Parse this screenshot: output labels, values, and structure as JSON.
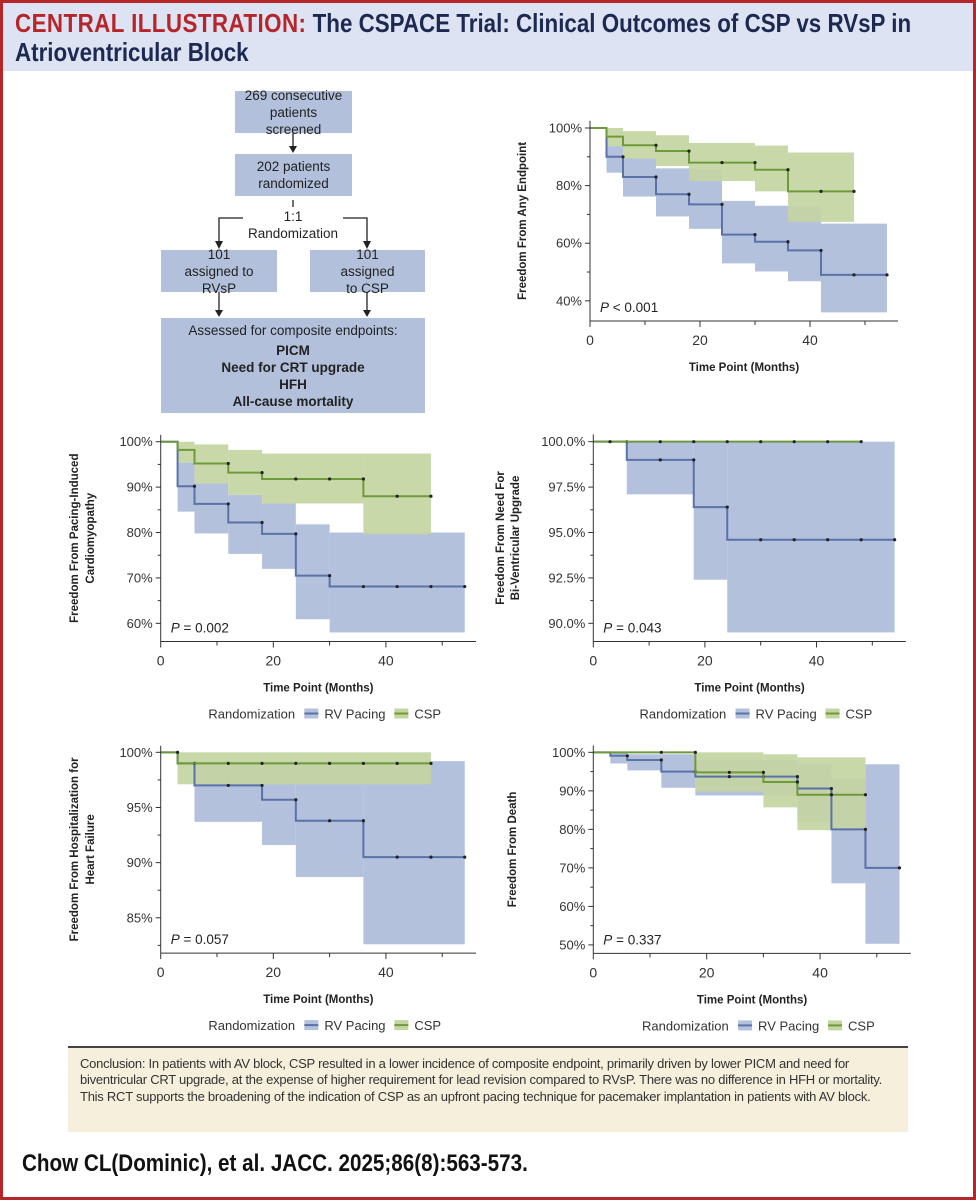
{
  "header": {
    "label": "CENTRAL ILLUSTRATION:",
    "title": "The CSPACE Trial: Clinical Outcomes of CSP vs RVsP in Atrioventricular Block"
  },
  "flowchart": {
    "screened": "269 consecutive patients screened",
    "randomized": "202 patients randomized",
    "ratio": "1:1",
    "randomization": "Randomization",
    "arm_rvsp": "101 assigned to RVsP",
    "arm_csp": "101 assigned to CSP",
    "assessed": "Assessed for composite endpoints:",
    "endpoints": [
      "PICM",
      "Need for CRT upgrade",
      "HFH",
      "All-cause mortality"
    ]
  },
  "colors": {
    "rv_line": "#5a72a8",
    "rv_band": "#b3c1dd",
    "csp_line": "#6f9a3c",
    "csp_band": "#c4d5a2",
    "frame": "#b5262b",
    "header_bg": "#dde3f2",
    "conclusion_bg": "#f5efdc"
  },
  "legend": {
    "title": "Randomization",
    "rv": "RV Pacing",
    "csp": "CSP"
  },
  "chart_data": [
    {
      "type": "line",
      "subtype": "kaplan-meier step with confidence bands",
      "ylabel": [
        "Freedom From Any Endpoint"
      ],
      "xlabel": "Time Point (Months)",
      "xlim": [
        0,
        56
      ],
      "ylim": [
        33,
        102.5
      ],
      "xticks": [
        0,
        20,
        40
      ],
      "xtick_labels": [
        "0",
        "20",
        "40"
      ],
      "yticks": [
        100,
        80,
        60,
        40
      ],
      "ytick_labels": [
        "100%",
        "80%",
        "60%",
        "40%"
      ],
      "yminor_step": 10,
      "p_label": "P",
      "p_value": "< 0.001",
      "legend": false,
      "series": [
        {
          "name": "RV Pacing",
          "key": "rv",
          "steps": [
            [
              0,
              3,
              100,
              100,
              100
            ],
            [
              3,
              6,
              90,
              84.5,
              93.7
            ],
            [
              6,
              12,
              83,
              76.2,
              89.4
            ],
            [
              12,
              18,
              77,
              69.3,
              86
            ],
            [
              18,
              24,
              73.5,
              65,
              85.7
            ],
            [
              24,
              30,
              63,
              53,
              74.7
            ],
            [
              30,
              36,
              60.5,
              50.2,
              73
            ],
            [
              36,
              42,
              57.5,
              46.8,
              73
            ],
            [
              42,
              54,
              49,
              36,
              66.8
            ]
          ],
          "marks": [
            6,
            12,
            18,
            24,
            30,
            36,
            42,
            48,
            54
          ]
        },
        {
          "name": "CSP",
          "key": "csp",
          "steps": [
            [
              0,
              3,
              100,
              100,
              100
            ],
            [
              3,
              6,
              97,
              93.7,
              100
            ],
            [
              6,
              12,
              94,
              89.4,
              98.9
            ],
            [
              12,
              18,
              92,
              86.8,
              97.5
            ],
            [
              18,
              30,
              88,
              81.6,
              94.8
            ],
            [
              30,
              36,
              85.5,
              78,
              93.9
            ],
            [
              36,
              48,
              78,
              67.4,
              91.5
            ]
          ],
          "marks": [
            12,
            18,
            24,
            30,
            36,
            42,
            48
          ]
        }
      ]
    },
    {
      "type": "line",
      "subtype": "kaplan-meier step with confidence bands",
      "ylabel": [
        "Freedom From Pacing-Induced",
        "Cardiomyopathy"
      ],
      "xlabel": "Time Point (Months)",
      "xlim": [
        0,
        56
      ],
      "ylim": [
        56,
        101.5
      ],
      "xticks": [
        0,
        20,
        40
      ],
      "xtick_labels": [
        "0",
        "20",
        "40"
      ],
      "yticks": [
        100,
        90,
        80,
        70,
        60
      ],
      "ytick_labels": [
        "100%",
        "90%",
        "80%",
        "70%",
        "60%"
      ],
      "yminor_step": 5,
      "p_label": "P",
      "p_value": "= 0.002",
      "legend": true,
      "series": [
        {
          "name": "RV Pacing",
          "key": "rv",
          "steps": [
            [
              0,
              3,
              100,
              100,
              100
            ],
            [
              3,
              6,
              90.2,
              84.6,
              95.4
            ],
            [
              6,
              12,
              86.3,
              79.8,
              90.8
            ],
            [
              12,
              18,
              82.2,
              75.3,
              88.3
            ],
            [
              18,
              24,
              79.7,
              72,
              86.4
            ],
            [
              24,
              30,
              70.5,
              60.9,
              81.8
            ],
            [
              30,
              54,
              68.1,
              58,
              80
            ]
          ],
          "marks": [
            6,
            12,
            18,
            24,
            30,
            36,
            42,
            48,
            54
          ]
        },
        {
          "name": "CSP",
          "key": "csp",
          "steps": [
            [
              0,
              3,
              100,
              100,
              100
            ],
            [
              3,
              6,
              98.2,
              95.4,
              100
            ],
            [
              6,
              12,
              95.2,
              90.8,
              99.4
            ],
            [
              12,
              18,
              93.2,
              88.3,
              98.2
            ],
            [
              18,
              36,
              91.8,
              86.4,
              97.4
            ],
            [
              36,
              48,
              88,
              79.6,
              97.4
            ]
          ],
          "marks": [
            12,
            18,
            24,
            30,
            36,
            42,
            48
          ]
        }
      ]
    },
    {
      "type": "line",
      "subtype": "kaplan-meier step with confidence bands",
      "ylabel": [
        "Freedom From Need For",
        "Bi-Ventricular Upgrade"
      ],
      "xlabel": "Time Point (Months)",
      "xlim": [
        0,
        56
      ],
      "ylim": [
        89,
        100.4
      ],
      "xticks": [
        0,
        20,
        40
      ],
      "xtick_labels": [
        "0",
        "20",
        "40"
      ],
      "yticks": [
        100,
        97.5,
        95,
        92.5,
        90
      ],
      "ytick_labels": [
        "100.0%",
        "97.5%",
        "95.0%",
        "92.5%",
        "90.0%"
      ],
      "yminor_step": 1.25,
      "p_label": "P",
      "p_value": "= 0.043",
      "legend": true,
      "series": [
        {
          "name": "RV Pacing",
          "key": "rv",
          "steps": [
            [
              0,
              6,
              100,
              100,
              100
            ],
            [
              6,
              18,
              99,
              97.1,
              100
            ],
            [
              18,
              24,
              96.4,
              92.4,
              100
            ],
            [
              24,
              54,
              94.6,
              89.5,
              100
            ]
          ],
          "marks": [
            6,
            12,
            18,
            24,
            30,
            36,
            42,
            48,
            54
          ]
        },
        {
          "name": "CSP",
          "key": "csp",
          "steps": [
            [
              0,
              48,
              100,
              100,
              100
            ]
          ],
          "marks": [
            3,
            12,
            18,
            24,
            30,
            36,
            42,
            48
          ]
        }
      ]
    },
    {
      "type": "line",
      "subtype": "kaplan-meier step with confidence bands",
      "ylabel": [
        "Freedom From Hospitalization for",
        "Heart Failure"
      ],
      "xlabel": "Time Point (Months)",
      "xlim": [
        0,
        56
      ],
      "ylim": [
        81.8,
        100.6
      ],
      "xticks": [
        0,
        20,
        40
      ],
      "xtick_labels": [
        "0",
        "20",
        "40"
      ],
      "yticks": [
        100,
        95,
        90,
        85
      ],
      "ytick_labels": [
        "100%",
        "95%",
        "90%",
        "85%"
      ],
      "yminor_step": 2.5,
      "p_label": "P",
      "p_value": "= 0.057",
      "legend": true,
      "series": [
        {
          "name": "RV Pacing",
          "key": "rv",
          "steps": [
            [
              0,
              3,
              100,
              100,
              100
            ],
            [
              3,
              6,
              99,
              99,
              99
            ],
            [
              6,
              18,
              97,
              93.7,
              99.2
            ],
            [
              18,
              24,
              95.7,
              91.6,
              99.2
            ],
            [
              24,
              36,
              93.8,
              88.7,
              99.2
            ],
            [
              36,
              54,
              90.5,
              82.6,
              99.2
            ]
          ],
          "marks": [
            6,
            12,
            18,
            24,
            30,
            36,
            42,
            48,
            54
          ]
        },
        {
          "name": "CSP",
          "key": "csp",
          "steps": [
            [
              0,
              3,
              100,
              100,
              100
            ],
            [
              3,
              48,
              99,
              97.1,
              100
            ]
          ],
          "marks": [
            3,
            12,
            18,
            24,
            30,
            36,
            42,
            48
          ]
        }
      ]
    },
    {
      "type": "line",
      "subtype": "kaplan-meier step with confidence bands",
      "ylabel": [
        "Freedom From Death"
      ],
      "xlabel": "Time Point (Months)",
      "xlim": [
        0,
        56
      ],
      "ylim": [
        47.8,
        101.8
      ],
      "xticks": [
        0,
        20,
        40
      ],
      "xtick_labels": [
        "0",
        "20",
        "40"
      ],
      "yticks": [
        100,
        90,
        80,
        70,
        60,
        50
      ],
      "ytick_labels": [
        "100%",
        "90%",
        "80%",
        "70%",
        "60%",
        "50%"
      ],
      "yminor_step": 5,
      "p_label": "P",
      "p_value": "= 0.337",
      "legend": true,
      "series": [
        {
          "name": "RV Pacing",
          "key": "rv",
          "steps": [
            [
              0,
              3,
              100,
              100,
              100
            ],
            [
              3,
              6,
              99.1,
              97.1,
              100
            ],
            [
              6,
              12,
              98,
              95.3,
              99.5
            ],
            [
              12,
              18,
              95,
              90.8,
              99.5
            ],
            [
              18,
              36,
              93.7,
              88.8,
              98
            ],
            [
              36,
              42,
              90.6,
              82,
              97
            ],
            [
              42,
              48,
              80,
              66,
              93
            ],
            [
              48,
              54,
              70,
              50.3,
              96.9
            ]
          ],
          "marks": [
            6,
            12,
            18,
            24,
            30,
            36,
            42,
            48,
            54
          ]
        },
        {
          "name": "CSP",
          "key": "csp",
          "steps": [
            [
              0,
              18,
              100,
              100,
              100
            ],
            [
              18,
              30,
              94.8,
              89.8,
              100
            ],
            [
              30,
              36,
              92.3,
              85.7,
              99.5
            ],
            [
              36,
              48,
              89,
              79.8,
              98.7
            ]
          ],
          "marks": [
            12,
            18,
            24,
            30,
            36,
            42,
            48
          ]
        }
      ]
    }
  ],
  "conclusion": "Conclusion: In patients with AV block, CSP resulted in a lower incidence of composite endpoint, primarily driven by lower PICM and need for biventricular CRT upgrade, at the expense of higher requirement for lead revision compared to RVsP. There was no difference in HFH or mortality. This RCT supports the broadening of the indication of CSP as an upfront pacing technique for pacemaker implantation in patients with AV block.",
  "citation": "Chow CL(Dominic), et al. JACC. 2025;86(8):563-573."
}
